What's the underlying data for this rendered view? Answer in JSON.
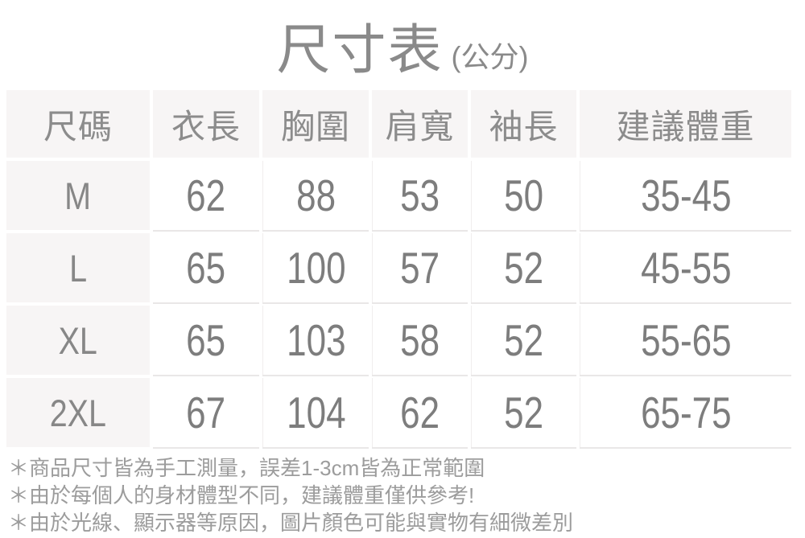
{
  "title": {
    "main": "尺寸表",
    "unit": "(公分)"
  },
  "chart_data": {
    "type": "table",
    "title": "尺寸表 (公分)",
    "columns": [
      "尺碼",
      "衣長",
      "胸圍",
      "肩寬",
      "袖長",
      "建議體重"
    ],
    "rows": [
      [
        "M",
        62,
        88,
        53,
        50,
        "35-45"
      ],
      [
        "L",
        65,
        100,
        57,
        52,
        "45-55"
      ],
      [
        "XL",
        65,
        103,
        58,
        52,
        "55-65"
      ],
      [
        "2XL",
        67,
        104,
        62,
        52,
        "65-75"
      ]
    ]
  },
  "notes": [
    "＊商品尺寸皆為手工測量，誤差1-3cm皆為正常範圍",
    "＊由於每個人的身材體型不同，建議體重僅供參考!",
    "＊由於光線、顯示器等原因，圖片顏色可能與實物有細微差別"
  ],
  "colors": {
    "header_bg": "#f7f5f5",
    "cell_bg": "#ffffff",
    "table_text": "#7d7d7d",
    "header_text": "#8c8c8c",
    "title_text": "#8a8a8a",
    "row_line": "#e9e7e7",
    "note_text": "#9c9c9c"
  }
}
